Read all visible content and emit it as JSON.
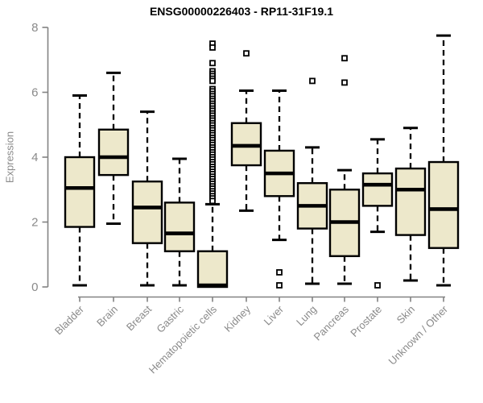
{
  "title": "ENSG00000226403 - RP11-31F19.1",
  "y_axis": {
    "label": "Expression"
  },
  "colors": {
    "box_fill": "#EDE8CB",
    "box_border": "#000000",
    "median": "#000000",
    "whisker": "#000000",
    "outlier_fill": "#ffffff",
    "axis": "#828282",
    "tick_label": "#8a8a8a",
    "title": "#000000"
  },
  "chart_data": {
    "type": "boxplot",
    "title": "ENSG00000226403 - RP11-31F19.1",
    "xlabel": "",
    "ylabel": "Expression",
    "ylim": [
      0,
      8
    ],
    "yticks": [
      0,
      2,
      4,
      6,
      8
    ],
    "grid": false,
    "legend": "none",
    "categories": [
      "Bladder",
      "Brain",
      "Breast",
      "Gastric",
      "Hematopoietic cells",
      "Kidney",
      "Liver",
      "Lung",
      "Pancreas",
      "Prostate",
      "Skin",
      "Unknown / Other"
    ],
    "series": [
      {
        "name": "Bladder",
        "whisker_low": 0.05,
        "q1": 1.85,
        "median": 3.05,
        "q3": 4.0,
        "whisker_high": 5.9,
        "outliers": []
      },
      {
        "name": "Brain",
        "whisker_low": 1.95,
        "q1": 3.45,
        "median": 4.0,
        "q3": 4.85,
        "whisker_high": 6.6,
        "outliers": []
      },
      {
        "name": "Breast",
        "whisker_low": 0.05,
        "q1": 1.35,
        "median": 2.45,
        "q3": 3.25,
        "whisker_high": 5.4,
        "outliers": []
      },
      {
        "name": "Gastric",
        "whisker_low": 0.05,
        "q1": 1.1,
        "median": 1.65,
        "q3": 2.6,
        "whisker_high": 3.95,
        "outliers": []
      },
      {
        "name": "Hematopoietic cells",
        "whisker_low": 0.0,
        "q1": 0.0,
        "median": 0.05,
        "q3": 1.1,
        "whisker_high": 2.55,
        "outliers": [
          7.5,
          7.38,
          6.9,
          6.65,
          6.57,
          6.5,
          6.42,
          6.35,
          6.1,
          6.03,
          5.95,
          5.88,
          5.8,
          5.73,
          5.65,
          5.58,
          5.5,
          5.43,
          5.35,
          5.28,
          5.2,
          5.13,
          5.05,
          4.98,
          4.9,
          4.83,
          4.75,
          4.68,
          4.6,
          4.53,
          4.45,
          4.38,
          4.3,
          4.23,
          4.15,
          4.08,
          4.0,
          3.93,
          3.85,
          3.78,
          3.7,
          3.63,
          3.55,
          3.48,
          3.4,
          3.33,
          3.25,
          3.18,
          3.1,
          3.03,
          2.95,
          2.88,
          2.8,
          2.73,
          2.65
        ]
      },
      {
        "name": "Kidney",
        "whisker_low": 2.35,
        "q1": 3.75,
        "median": 4.35,
        "q3": 5.05,
        "whisker_high": 6.05,
        "outliers": [
          7.2
        ]
      },
      {
        "name": "Liver",
        "whisker_low": 1.45,
        "q1": 2.8,
        "median": 3.5,
        "q3": 4.2,
        "whisker_high": 6.05,
        "outliers": [
          0.45,
          0.05
        ]
      },
      {
        "name": "Lung",
        "whisker_low": 0.1,
        "q1": 1.8,
        "median": 2.5,
        "q3": 3.2,
        "whisker_high": 4.3,
        "outliers": [
          6.35
        ]
      },
      {
        "name": "Pancreas",
        "whisker_low": 0.1,
        "q1": 0.95,
        "median": 2.0,
        "q3": 3.0,
        "whisker_high": 3.6,
        "outliers": [
          7.05,
          6.3
        ]
      },
      {
        "name": "Prostate",
        "whisker_low": 1.7,
        "q1": 2.5,
        "median": 3.15,
        "q3": 3.5,
        "whisker_high": 4.55,
        "outliers": [
          0.05
        ]
      },
      {
        "name": "Skin",
        "whisker_low": 0.2,
        "q1": 1.6,
        "median": 3.0,
        "q3": 3.65,
        "whisker_high": 4.9,
        "outliers": []
      },
      {
        "name": "Unknown / Other",
        "whisker_low": 0.05,
        "q1": 1.2,
        "median": 2.4,
        "q3": 3.85,
        "whisker_high": 7.75,
        "outliers": []
      }
    ]
  }
}
